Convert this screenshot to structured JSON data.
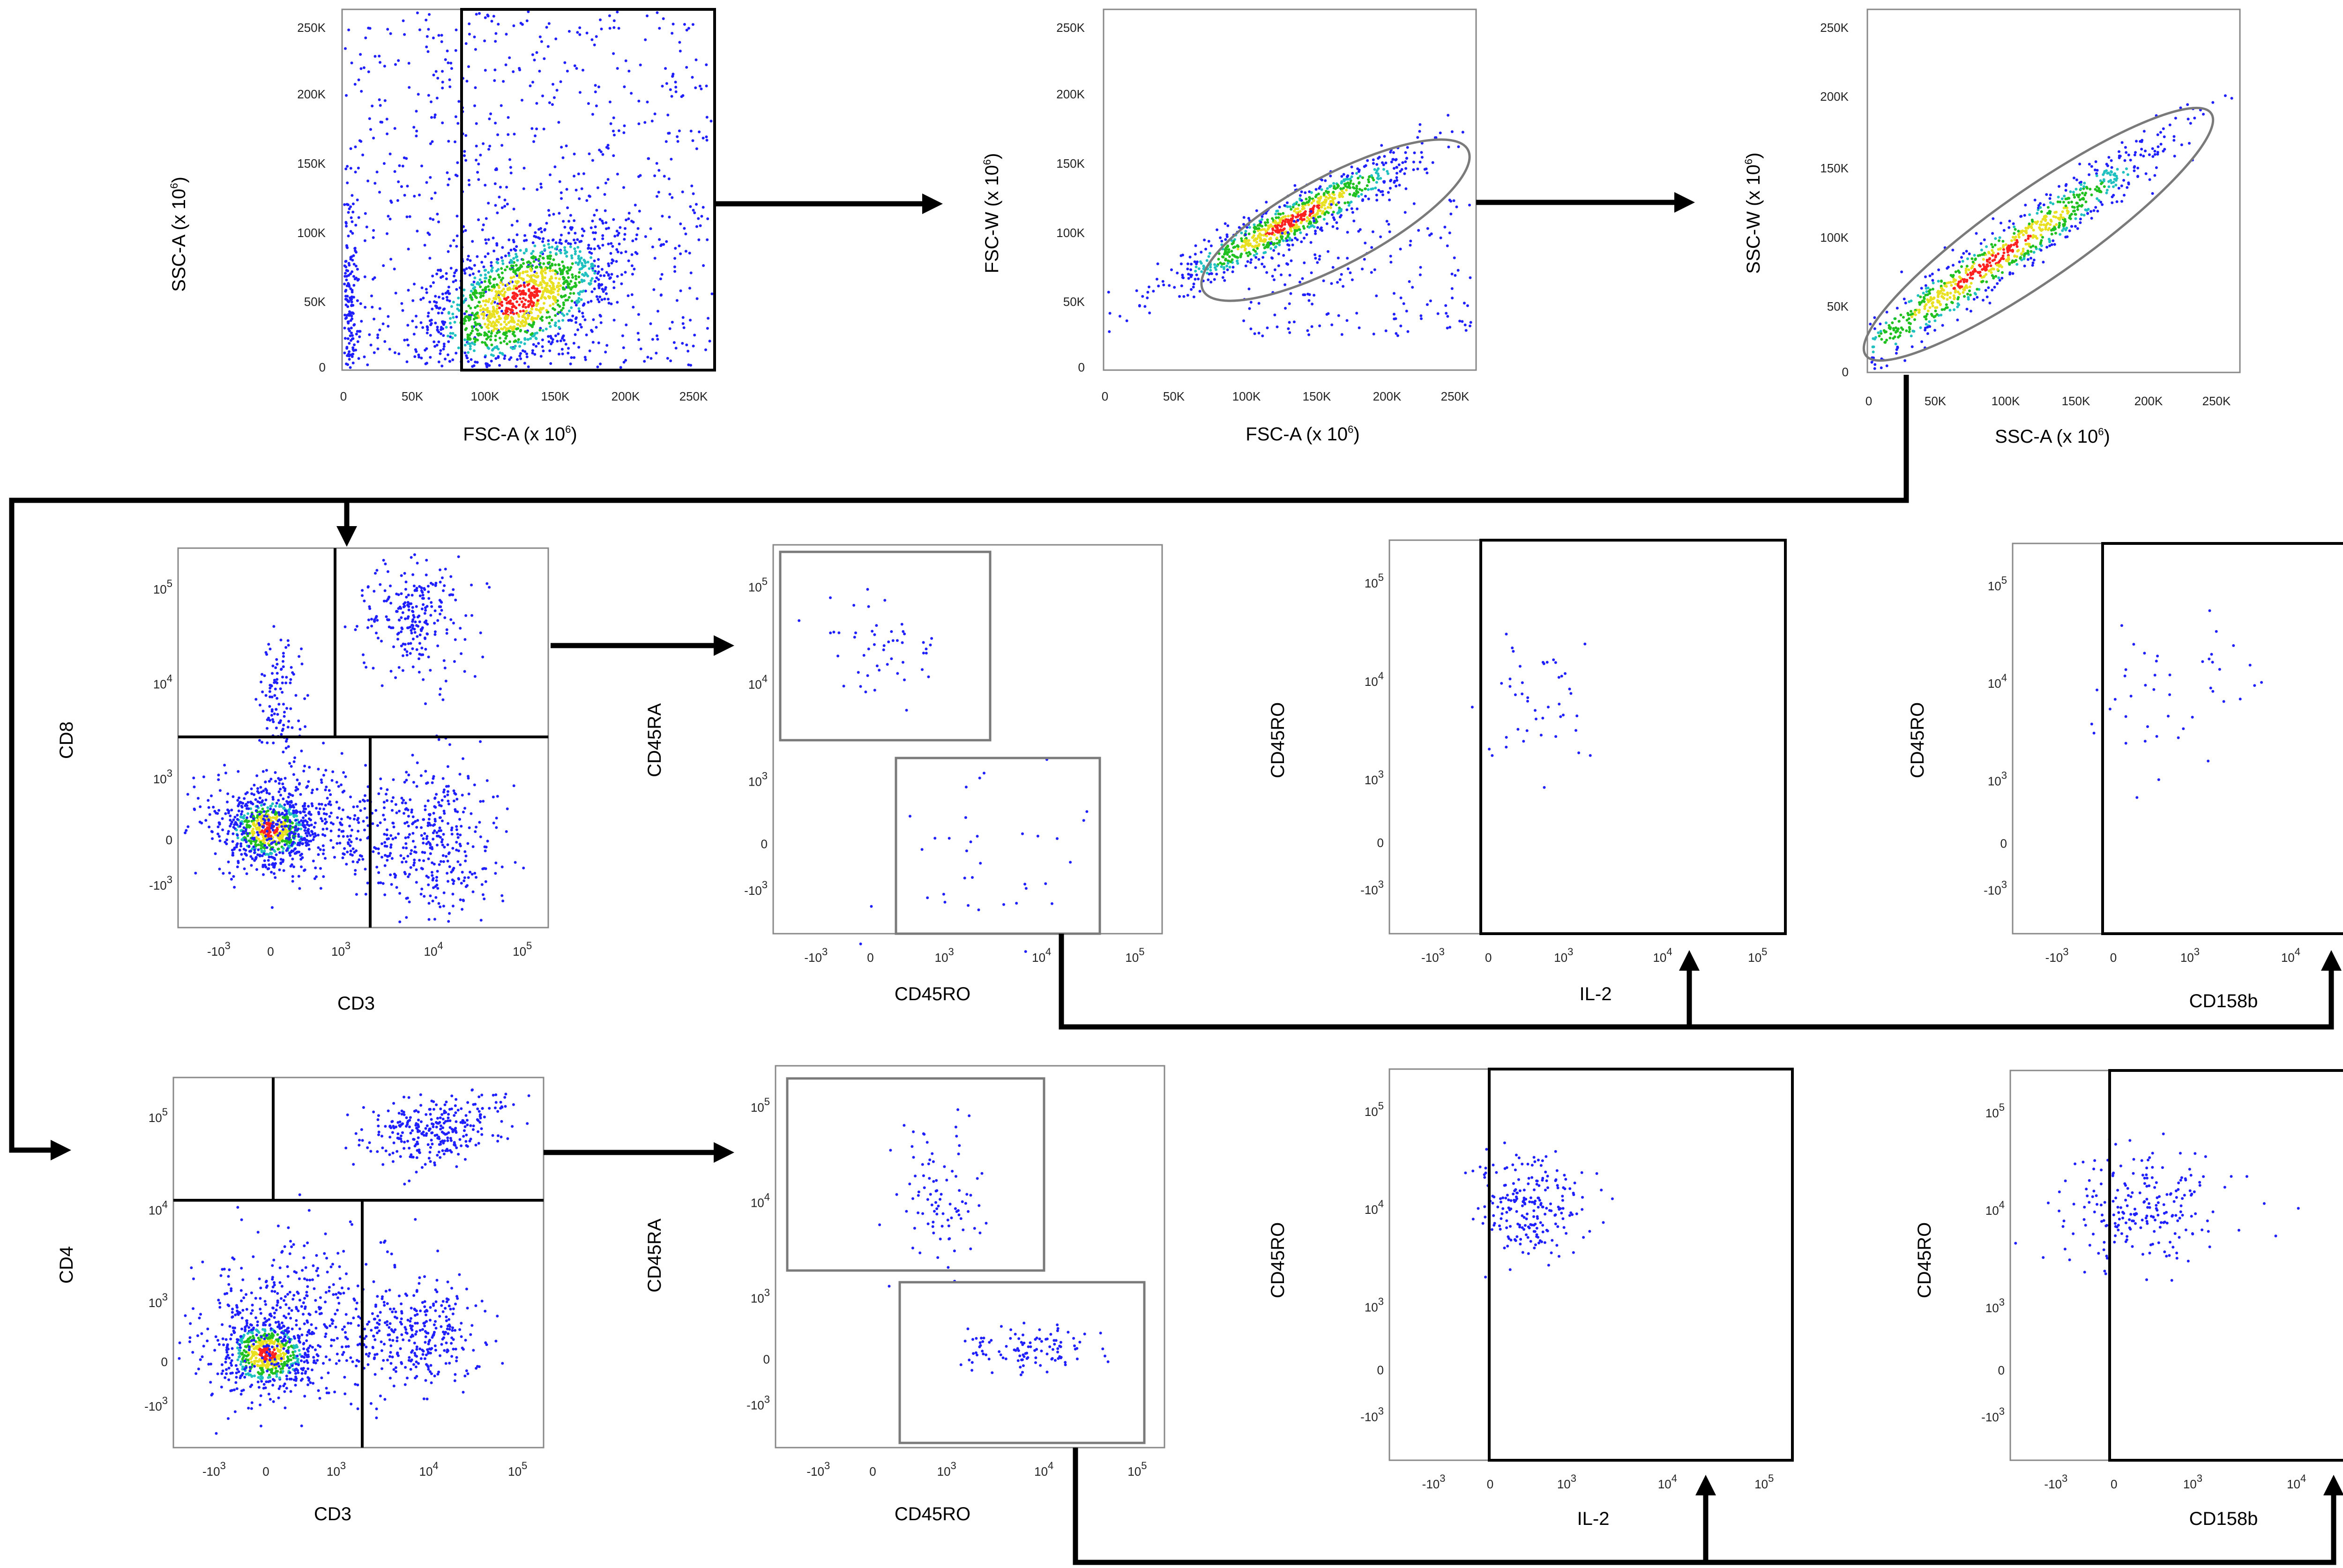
{
  "colors": {
    "dot_low": "#2020ff",
    "dot_mid": "#20c020",
    "dot_high": "#ff2020",
    "gate": "#000000",
    "ellipse_gate": "#7a7a7a",
    "arrow": "#000000"
  },
  "panels": {
    "p1": {
      "xlabel": "FSC-A (x 10",
      "xexp": "6",
      "xsuffix": ")",
      "ylabel": "SSC-A (x 10",
      "yexp": "6",
      "ysuffix": ")",
      "xticks": [
        "0",
        "50K",
        "100K",
        "150K",
        "200K",
        "250K"
      ],
      "yticks": [
        "0",
        "50K",
        "100K",
        "150K",
        "200K",
        "250K"
      ]
    },
    "p2": {
      "xlabel": "FSC-A (x 10",
      "xexp": "6",
      "xsuffix": ")",
      "ylabel": "FSC-W (x 10",
      "yexp": "6",
      "ysuffix": ")",
      "xticks": [
        "0",
        "50K",
        "100K",
        "150K",
        "200K",
        "250K"
      ],
      "yticks": [
        "0",
        "50K",
        "100K",
        "150K",
        "200K",
        "250K"
      ]
    },
    "p3": {
      "xlabel": "SSC-A (x 10",
      "xexp": "6",
      "xsuffix": ")",
      "ylabel": "SSC-W (x 10",
      "yexp": "6",
      "ysuffix": ")",
      "xticks": [
        "0",
        "50K",
        "100K",
        "150K",
        "200K",
        "250K"
      ],
      "yticks": [
        "0",
        "50K",
        "100K",
        "150K",
        "200K",
        "250K"
      ]
    },
    "r2a": {
      "xlabel": "CD3",
      "ylabel": "CD8"
    },
    "r2b": {
      "xlabel": "CD45RO",
      "ylabel": "CD45RA"
    },
    "r2c": {
      "xlabel": "IL-2",
      "ylabel": "CD45RO"
    },
    "r2d": {
      "xlabel": "CD158b",
      "ylabel": "CD45RO"
    },
    "r3a": {
      "xlabel": "CD3",
      "ylabel": "CD4"
    },
    "r3b": {
      "xlabel": "CD45RO",
      "ylabel": "CD45RA"
    },
    "r3c": {
      "xlabel": "IL-2",
      "ylabel": "CD45RO"
    },
    "r3d": {
      "xlabel": "CD158b",
      "ylabel": "CD45RO"
    }
  },
  "log_ticks": {
    "neg": "-10",
    "neg_exp": "3",
    "zero": "0",
    "pos": "10",
    "exp3": "3",
    "exp4": "4",
    "exp5": "5"
  }
}
